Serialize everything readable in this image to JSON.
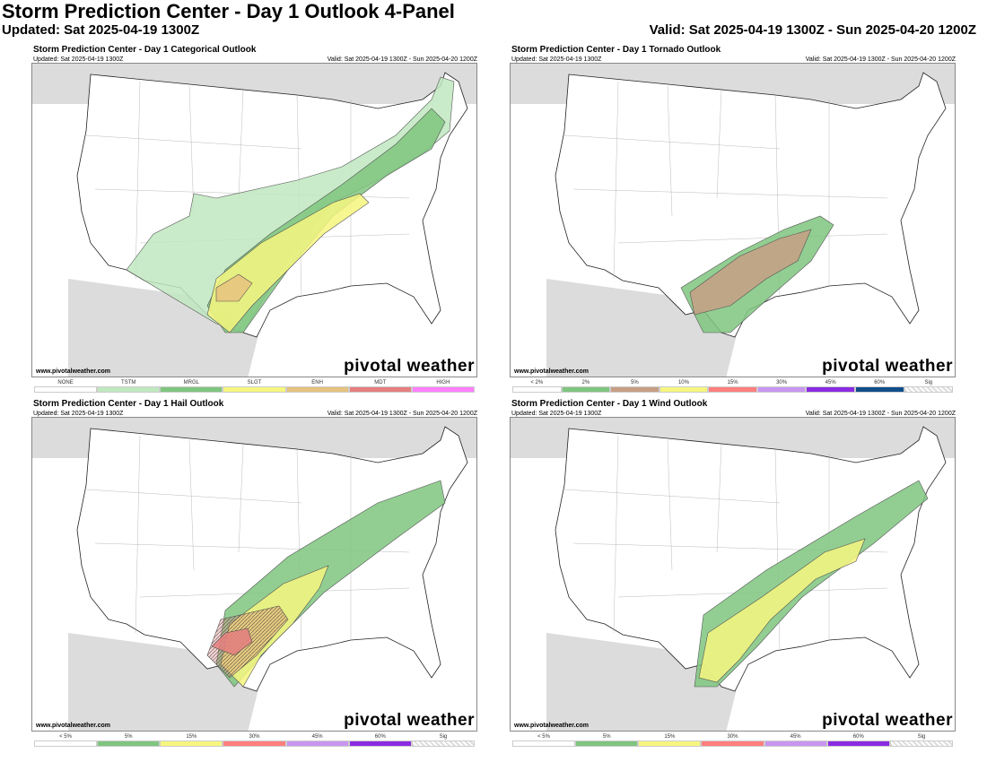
{
  "header": {
    "title": "Storm Prediction Center - Day 1 Outlook 4-Panel",
    "updated": "Updated: Sat 2025-04-19 1300Z",
    "valid": "Valid: Sat 2025-04-19 1300Z - Sun 2025-04-20 1200Z"
  },
  "panels": [
    {
      "title": "Storm Prediction Center - Day 1 Categorical Outlook",
      "updated": "Updated: Sat 2025-04-19 1300Z",
      "valid": "Valid: Sat 2025-04-19 1300Z - Sun 2025-04-20 1200Z",
      "site": "www.pivotalweather.com",
      "logo": "pivotal weather",
      "legend": [
        {
          "label": "NONE",
          "color": "#ffffff"
        },
        {
          "label": "TSTM",
          "color": "#c0e8c0"
        },
        {
          "label": "MRGL",
          "color": "#7fc57f"
        },
        {
          "label": "SLGT",
          "color": "#f6f67f"
        },
        {
          "label": "ENH",
          "color": "#e6c27f"
        },
        {
          "label": "MDT",
          "color": "#e67f7f"
        },
        {
          "label": "HIGH",
          "color": "#ff7fff"
        }
      ]
    },
    {
      "title": "Storm Prediction Center - Day 1 Tornado Outlook",
      "updated": "Updated: Sat 2025-04-19 1300Z",
      "valid": "Valid: Sat 2025-04-19 1300Z - Sun 2025-04-20 1200Z",
      "site": "www.pivotalweather.com",
      "logo": "pivotal weather",
      "legend": [
        {
          "label": "< 2%",
          "color": "#ffffff"
        },
        {
          "label": "2%",
          "color": "#7fc57f"
        },
        {
          "label": "5%",
          "color": "#c59f85"
        },
        {
          "label": "10%",
          "color": "#f6f67f"
        },
        {
          "label": "15%",
          "color": "#ff7f7f"
        },
        {
          "label": "30%",
          "color": "#c896f0"
        },
        {
          "label": "45%",
          "color": "#8b2be2"
        },
        {
          "label": "60%",
          "color": "#104e8b"
        },
        {
          "label": "Sig",
          "color": "hatch"
        }
      ]
    },
    {
      "title": "Storm Prediction Center - Day 1 Hail Outlook",
      "updated": "Updated: Sat 2025-04-19 1300Z",
      "valid": "Valid: Sat 2025-04-19 1300Z - Sun 2025-04-20 1200Z",
      "site": "www.pivotalweather.com",
      "logo": "pivotal weather",
      "legend": [
        {
          "label": "< 5%",
          "color": "#ffffff"
        },
        {
          "label": "5%",
          "color": "#7fc57f"
        },
        {
          "label": "15%",
          "color": "#f6f67f"
        },
        {
          "label": "30%",
          "color": "#ff7f7f"
        },
        {
          "label": "45%",
          "color": "#c896f0"
        },
        {
          "label": "60%",
          "color": "#8b2be2"
        },
        {
          "label": "Sig",
          "color": "hatch"
        }
      ]
    },
    {
      "title": "Storm Prediction Center - Day 1 Wind Outlook",
      "updated": "Updated: Sat 2025-04-19 1300Z",
      "valid": "Valid: Sat 2025-04-19 1300Z - Sun 2025-04-20 1200Z",
      "site": "www.pivotalweather.com",
      "logo": "pivotal weather",
      "legend": [
        {
          "label": "< 5%",
          "color": "#ffffff"
        },
        {
          "label": "5%",
          "color": "#7fc57f"
        },
        {
          "label": "15%",
          "color": "#f6f67f"
        },
        {
          "label": "30%",
          "color": "#ff7f7f"
        },
        {
          "label": "45%",
          "color": "#c896f0"
        },
        {
          "label": "60%",
          "color": "#8b2be2"
        },
        {
          "label": "Sig",
          "color": "hatch"
        }
      ]
    }
  ]
}
